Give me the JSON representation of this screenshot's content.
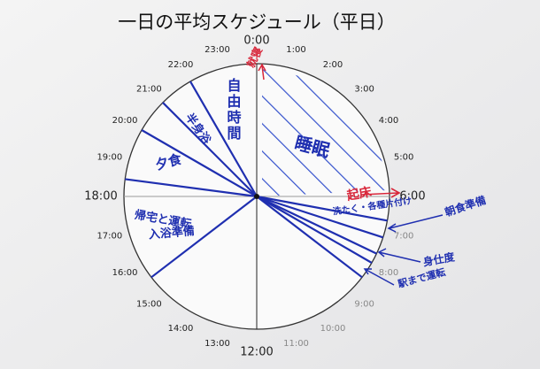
{
  "title": "一日の平均スケジュール（平日）",
  "hours": [
    "0:00",
    "1:00",
    "2:00",
    "3:00",
    "4:00",
    "5:00",
    "6:00",
    "7:00",
    "8:00",
    "9:00",
    "10:00",
    "11:00",
    "12:00",
    "13:00",
    "14:00",
    "15:00",
    "16:00",
    "17:00",
    "18:00",
    "19:00",
    "20:00",
    "21:00",
    "22:00",
    "23:00"
  ],
  "boundaries": [
    22,
    21,
    20,
    18.5,
    15.5,
    6.7,
    7.2,
    7.7,
    8,
    8.5
  ],
  "notes": [
    "就寝",
    "自由時間",
    "睡眠",
    "起床",
    "洗たく・各種片付け",
    "朝食準備",
    "身仕度",
    "駅まで運転",
    "夕食",
    "半身浴",
    "帰宅と運転",
    "入浴準備"
  ]
}
